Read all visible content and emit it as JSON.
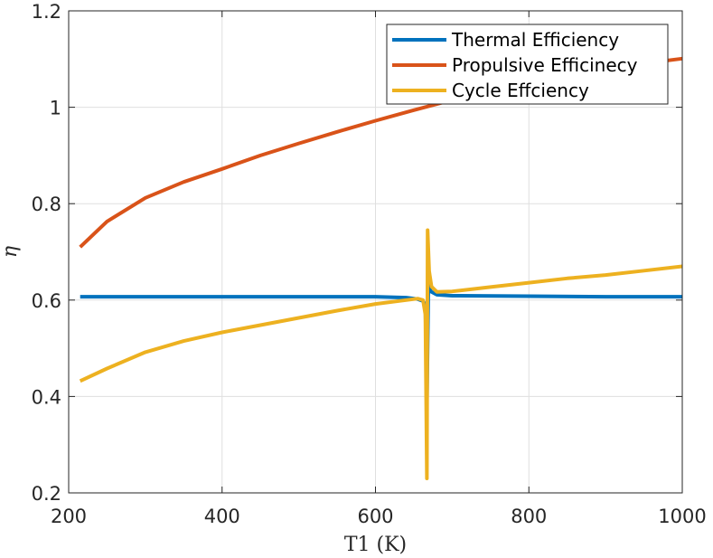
{
  "chart_data": {
    "type": "line",
    "xlabel": "T1 (K)",
    "ylabel": "η",
    "xlim": [
      200,
      1000
    ],
    "ylim": [
      0.2,
      1.2
    ],
    "xticks": [
      200,
      400,
      600,
      800,
      1000
    ],
    "yticks": [
      0.2,
      0.4,
      0.6,
      0.8,
      1,
      1.2
    ],
    "xtick_labels": [
      "200",
      "400",
      "600",
      "800",
      "1000"
    ],
    "ytick_labels": [
      "0.2",
      "0.4",
      "0.6",
      "0.8",
      "1",
      "1.2"
    ],
    "grid": true,
    "legend_position": "top-right",
    "series": [
      {
        "name": "Thermal Efficiency",
        "color": "#0072BD",
        "x": [
          215,
          300,
          400,
          500,
          600,
          640,
          655,
          662,
          665,
          667,
          669,
          672,
          680,
          700,
          800,
          900,
          1000
        ],
        "y": [
          0.607,
          0.607,
          0.607,
          0.607,
          0.607,
          0.605,
          0.602,
          0.598,
          0.59,
          0.38,
          0.64,
          0.618,
          0.611,
          0.609,
          0.608,
          0.607,
          0.607
        ]
      },
      {
        "name": "Propulsive Efficinecy",
        "color": "#D95319",
        "x": [
          215,
          250,
          300,
          350,
          400,
          450,
          500,
          550,
          600,
          650,
          700,
          750,
          800,
          850,
          900,
          950,
          1000
        ],
        "y": [
          0.71,
          0.763,
          0.812,
          0.845,
          0.872,
          0.9,
          0.925,
          0.949,
          0.972,
          0.994,
          1.015,
          1.035,
          1.052,
          1.067,
          1.08,
          1.091,
          1.101
        ]
      },
      {
        "name": "Cycle Effciency",
        "color": "#EDB120",
        "x": [
          215,
          250,
          300,
          350,
          400,
          450,
          500,
          550,
          600,
          640,
          655,
          662,
          665,
          667,
          668,
          670,
          673,
          680,
          700,
          750,
          800,
          850,
          900,
          950,
          1000
        ],
        "y": [
          0.432,
          0.458,
          0.492,
          0.515,
          0.533,
          0.548,
          0.563,
          0.578,
          0.592,
          0.6,
          0.603,
          0.6,
          0.57,
          0.23,
          0.745,
          0.66,
          0.628,
          0.617,
          0.618,
          0.627,
          0.636,
          0.645,
          0.652,
          0.661,
          0.67
        ]
      }
    ]
  }
}
